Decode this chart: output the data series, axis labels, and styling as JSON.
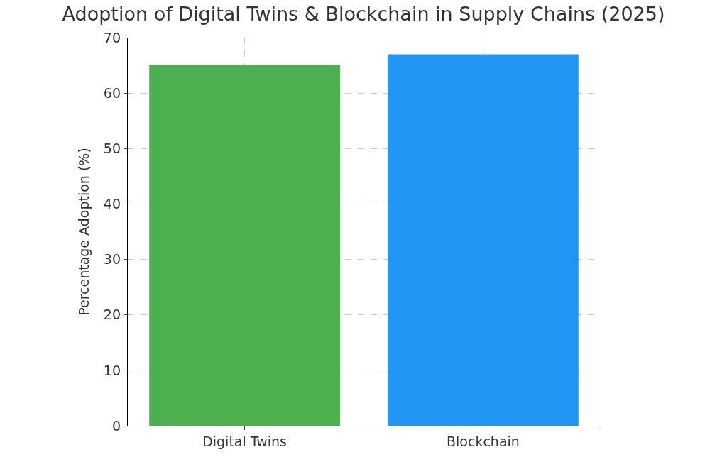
{
  "chart_data": {
    "type": "bar",
    "title": "Adoption of Digital Twins & Blockchain in Supply Chains (2025)",
    "ylabel": "Percentage Adoption (%)",
    "categories": [
      "Digital Twins",
      "Blockchain"
    ],
    "values": [
      65,
      67
    ],
    "colors": [
      "#4caf50",
      "#2196f3"
    ],
    "ylim": [
      0,
      70
    ],
    "yticks": [
      0,
      10,
      20,
      30,
      40,
      50,
      60,
      70
    ],
    "grid": true
  }
}
